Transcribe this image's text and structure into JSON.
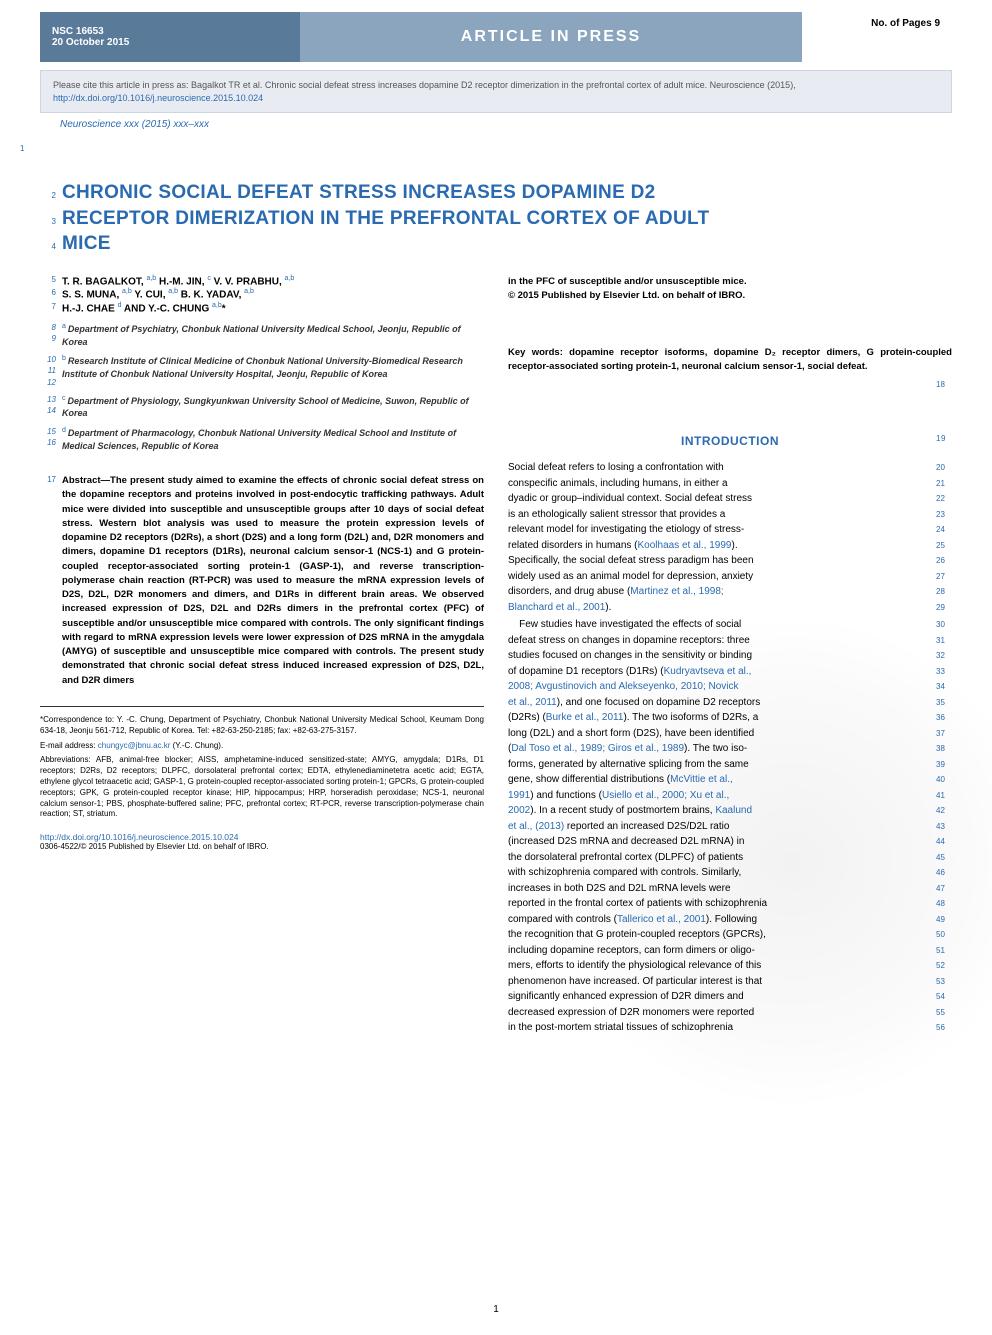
{
  "header": {
    "nsc": "NSC 16653",
    "date": "20 October 2015",
    "center": "ARTICLE IN PRESS",
    "pages": "No. of Pages 9"
  },
  "cite_box": {
    "text1": "Please cite this article in press as: Bagalkot TR et al. Chronic social defeat stress increases dopamine D2 receptor dimerization in the prefrontal cortex of adult mice. Neuroscience (2015), ",
    "link": "http://dx.doi.org/10.1016/j.neuroscience.2015.10.024"
  },
  "journal_line": "Neuroscience xxx (2015) xxx–xxx",
  "margin1": "1",
  "title": {
    "lines": [
      {
        "num": "2",
        "text": "CHRONIC SOCIAL DEFEAT STRESS INCREASES DOPAMINE D2"
      },
      {
        "num": "3",
        "text": "RECEPTOR DIMERIZATION IN THE PREFRONTAL CORTEX OF ADULT"
      },
      {
        "num": "4",
        "text": "MICE"
      }
    ]
  },
  "authors": {
    "row1": {
      "num": "5",
      "text": "T. R. BAGALKOT, a,b H.-M. JIN, c V. V. PRABHU, a,b"
    },
    "row2": {
      "num": "6",
      "text": "S. S. MUNA, a,b Y. CUI, a,b B. K. YADAV, a,b"
    },
    "row3": {
      "num": "7",
      "text": "H.-J. CHAE d AND Y.-C. CHUNG a,b*"
    }
  },
  "affiliations": [
    {
      "nums": [
        "8",
        "9"
      ],
      "sup": "a",
      "text": "Department of Psychiatry, Chonbuk National University Medical School, Jeonju, Republic of Korea"
    },
    {
      "nums": [
        "10",
        "11",
        "12"
      ],
      "sup": "b",
      "text": "Research Institute of Clinical Medicine of Chonbuk National University-Biomedical Research Institute of Chonbuk National University Hospital, Jeonju, Republic of Korea"
    },
    {
      "nums": [
        "13",
        "14"
      ],
      "sup": "c",
      "text": "Department of Physiology, Sungkyunkwan University School of Medicine, Suwon, Republic of Korea"
    },
    {
      "nums": [
        "15",
        "16"
      ],
      "sup": "d",
      "text": "Department of Pharmacology, Chonbuk National University Medical School and Institute of Medical Sciences, Republic of Korea"
    }
  ],
  "abstract": {
    "num": "17",
    "text": "Abstract—The present study aimed to examine the effects of chronic social defeat stress on the dopamine receptors and proteins involved in post-endocytic trafficking pathways. Adult mice were divided into susceptible and unsusceptible groups after 10 days of social defeat stress. Western blot analysis was used to measure the protein expression levels of dopamine D2 receptors (D2Rs), a short (D2S) and a long form (D2L) and, D2R monomers and dimers, dopamine D1 receptors (D1Rs), neuronal calcium sensor-1 (NCS-1) and G protein-coupled receptor-associated sorting protein-1 (GASP-1), and reverse transcription-polymerase chain reaction (RT-PCR) was used to measure the mRNA expression levels of D2S, D2L, D2R monomers and dimers, and D1Rs in different brain areas. We observed increased expression of D2S, D2L and D2Rs dimers in the prefrontal cortex (PFC) of susceptible and/or unsusceptible mice compared with controls. The only significant findings with regard to mRNA expression levels were lower expression of D2S mRNA in the amygdala (AMYG) of susceptible and unsusceptible mice compared with controls. The present study demonstrated that chronic social defeat stress induced increased expression of D2S, D2L, and D2R dimers"
  },
  "footnotes": {
    "correspondence": "*Correspondence to: Y. -C. Chung, Department of Psychiatry, Chonbuk National University Medical School, Keumam Dong 634-18, Jeonju 561-712, Republic of Korea. Tel: +82-63-250-2185; fax: +82-63-275-3157.",
    "email_label": "E-mail address: ",
    "email": "chungyc@jbnu.ac.kr",
    "email_tail": " (Y.-C. Chung).",
    "abbrev": "Abbreviations: AFB, animal-free blocker; AISS, amphetamine-induced sensitized-state; AMYG, amygdala; D1Rs, D1 receptors; D2Rs, D2 receptors; DLPFC, dorsolateral prefrontal cortex; EDTA, ethylenediaminetetra acetic acid; EGTA, ethylene glycol tetraacetic acid; GASP-1, G protein-coupled receptor-associated sorting protein-1; GPCRs, G protein-coupled receptors; GPK, G protein-coupled receptor kinase; HIP, hippocampus; HRP, horseradish peroxidase; NCS-1, neuronal calcium sensor-1; PBS, phosphate-buffered saline; PFC, prefrontal cortex; RT-PCR, reverse transcription-polymerase chain reaction; ST, striatum."
  },
  "dx": {
    "link": "http://dx.doi.org/10.1016/j.neuroscience.2015.10.024",
    "sub": "0306-4522/© 2015 Published by Elsevier Ltd. on behalf of IBRO."
  },
  "right_top": {
    "line1": "in the PFC of susceptible and/or unsusceptible mice.",
    "line2": "© 2015 Published by Elsevier Ltd. on behalf of IBRO."
  },
  "keywords": "Key words: dopamine receptor isoforms, dopamine D₂ receptor dimers, G protein-coupled receptor-associated sorting protein-1, neuronal calcium sensor-1, social defeat.",
  "kw_num": "18",
  "intro": {
    "heading": "INTRODUCTION",
    "heading_num": "19",
    "para1_lines": [
      {
        "t": "Social defeat refers to losing a confrontation with",
        "n": "20"
      },
      {
        "t": "conspecific animals, including humans, in either a",
        "n": "21"
      },
      {
        "t": "dyadic or group–individual context. Social defeat stress",
        "n": "22"
      },
      {
        "t": "is an ethologically salient stressor that provides a",
        "n": "23"
      },
      {
        "t": "relevant model for investigating the etiology of stress-",
        "n": "24"
      },
      {
        "t": "related disorders in humans (",
        "c": "Koolhaas et al., 1999",
        "tail": ").",
        "n": "25"
      },
      {
        "t": "Specifically, the social defeat stress paradigm has been",
        "n": "26"
      },
      {
        "t": "widely used as an animal model for depression, anxiety",
        "n": "27"
      },
      {
        "t": "disorders, and drug abuse (",
        "c": "Martinez et al., 1998;",
        "n": "28"
      },
      {
        "c": "Blanchard et al., 2001",
        "tail": ").",
        "n": "29"
      }
    ],
    "para2_lines": [
      {
        "indent": true,
        "t": "Few studies have investigated the effects of social",
        "n": "30"
      },
      {
        "t": "defeat stress on changes in dopamine receptors: three",
        "n": "31"
      },
      {
        "t": "studies focused on changes in the sensitivity or binding",
        "n": "32"
      },
      {
        "t": "of dopamine D1 receptors (D1Rs) (",
        "c": "Kudryavtseva et al.,",
        "n": "33"
      },
      {
        "c": "2008; Avgustinovich and Alekseyenko, 2010; Novick",
        "n": "34"
      },
      {
        "c": "et al., 2011",
        "tail": "), and one focused on dopamine D2 receptors",
        "n": "35"
      },
      {
        "t": "(D2Rs) (",
        "c": "Burke et al., 2011",
        "tail": "). The two isoforms of D2Rs, a",
        "n": "36"
      },
      {
        "t": "long (D2L) and a short form (D2S), have been identified",
        "n": "37"
      },
      {
        "t": "(",
        "c": "Dal Toso et al., 1989; Giros et al., 1989",
        "tail": "). The two iso-",
        "n": "38"
      },
      {
        "t": "forms, generated by alternative splicing from the same",
        "n": "39"
      },
      {
        "t": "gene, show differential distributions (",
        "c": "McVittie et al.,",
        "n": "40"
      },
      {
        "c": "1991",
        "tail": ") and functions (",
        "c2": "Usiello et al., 2000; Xu et al.,",
        "n": "41"
      },
      {
        "c": "2002",
        "tail": "). In a recent study of postmortem brains, ",
        "c2": "Kaalund",
        "n": "42"
      },
      {
        "c": "et al., (2013)",
        "tail": " reported an increased D2S/D2L ratio",
        "n": "43"
      },
      {
        "t": "(increased D2S mRNA and decreased D2L mRNA) in",
        "n": "44"
      },
      {
        "t": "the dorsolateral prefrontal cortex (DLPFC) of patients",
        "n": "45"
      },
      {
        "t": "with schizophrenia compared with controls. Similarly,",
        "n": "46"
      },
      {
        "t": "increases in both D2S and D2L mRNA levels were",
        "n": "47"
      },
      {
        "t": "reported in the frontal cortex of patients with schizophrenia",
        "n": "48"
      },
      {
        "t": "compared with controls (",
        "c": "Tallerico et al., 2001",
        "tail": "). Following",
        "n": "49"
      },
      {
        "t": "the recognition that G protein-coupled receptors (GPCRs),",
        "n": "50"
      },
      {
        "t": "including dopamine receptors, can form dimers or oligo-",
        "n": "51"
      },
      {
        "t": "mers, efforts to identify the physiological relevance of this",
        "n": "52"
      },
      {
        "t": "phenomenon have increased. Of particular interest is that",
        "n": "53"
      },
      {
        "t": "significantly enhanced expression of D2R dimers and",
        "n": "54"
      },
      {
        "t": "decreased expression of D2R monomers were reported",
        "n": "55"
      },
      {
        "t": "in the post-mortem striatal tissues of schizophrenia",
        "n": "56"
      }
    ]
  },
  "page_number": "1",
  "colors": {
    "header_left_bg": "#5a7a9a",
    "header_center_bg": "#8aa5bd",
    "cite_bg": "#e8ecf2",
    "link": "#2a6ab0",
    "title": "#2a6ab0"
  }
}
